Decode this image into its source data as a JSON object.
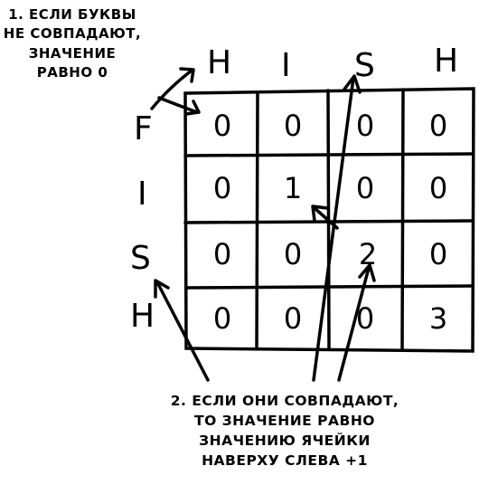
{
  "note_top": {
    "lines": [
      "1. ЕСЛИ БУКВЫ",
      "НЕ СОВПАДАЮТ,",
      "ЗНАЧЕНИЕ",
      "РАВНО 0"
    ]
  },
  "note_bottom": {
    "lines": [
      "2. ЕСЛИ ОНИ СОВПАДАЮТ,",
      "ТО ЗНАЧЕНИЕ РАВНО",
      "ЗНАЧЕНИЮ ЯЧЕЙКИ",
      "НАВЕРХУ СЛЕВА +1"
    ]
  },
  "column_headers": [
    "H",
    "I",
    "S",
    "H"
  ],
  "row_headers": [
    "F",
    "I",
    "S",
    "H"
  ],
  "grid": [
    [
      "0",
      "0",
      "0",
      "0"
    ],
    [
      "0",
      "1",
      "0",
      "0"
    ],
    [
      "0",
      "0",
      "2",
      "0"
    ],
    [
      "0",
      "0",
      "0",
      "3"
    ]
  ]
}
